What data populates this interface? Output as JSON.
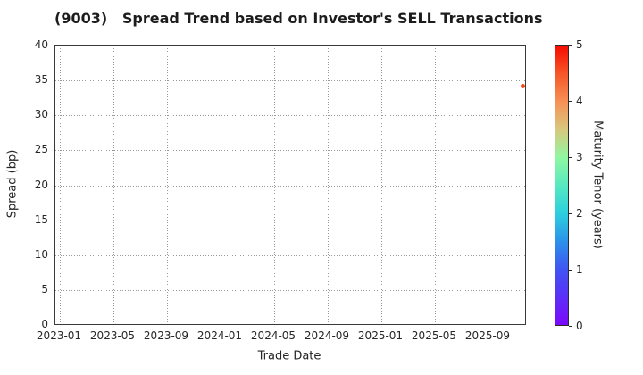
{
  "title": "(9003)   Spread Trend based on Investor's SELL Transactions",
  "chart_data": {
    "type": "scatter",
    "title": "(9003)   Spread Trend based on Investor's SELL Transactions",
    "xlabel": "Trade Date",
    "ylabel": "Spread (bp)",
    "xlim": [
      "2022-12-21",
      "2025-12-01"
    ],
    "ylim": [
      0,
      40
    ],
    "yticks": [
      0,
      5,
      10,
      15,
      20,
      25,
      30,
      35,
      40
    ],
    "xticks": [
      "2023-01",
      "2023-05",
      "2023-09",
      "2024-01",
      "2024-05",
      "2024-09",
      "2025-01",
      "2025-05",
      "2025-09"
    ],
    "grid": true,
    "grid_style": "dotted",
    "legend": "none",
    "points": [
      {
        "date": "2025-11-24",
        "spread_bp": 34,
        "maturity_years": 4.4,
        "color": "#f2491f"
      }
    ],
    "colorbar": {
      "label": "Maturity Tenor (years)",
      "min": 0,
      "max": 5,
      "ticks": [
        0,
        1,
        2,
        3,
        4,
        5
      ],
      "colormap": "rainbow"
    }
  }
}
